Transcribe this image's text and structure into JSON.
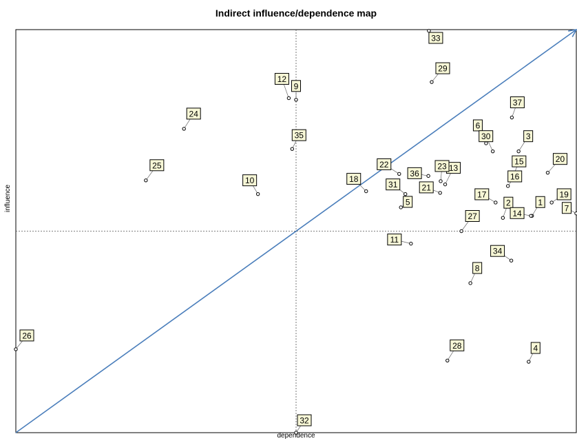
{
  "chart_data": {
    "type": "scatter",
    "title": "Indirect influence/dependence map",
    "xlabel": "dependence",
    "ylabel": "influence",
    "xlim": [
      0,
      1
    ],
    "ylim": [
      0,
      1
    ],
    "crosshair": {
      "x": 0.5,
      "y": 0.5
    },
    "diagonal": true,
    "grid": false,
    "legend": "none",
    "colors": {
      "diagonal": "#4a7ebb",
      "marker": "#000000",
      "label_fill": "#f7f7d6"
    },
    "points": [
      {
        "label": "1",
        "x": 0.921,
        "y": 0.538
      },
      {
        "label": "2",
        "x": 0.869,
        "y": 0.533
      },
      {
        "label": "3",
        "x": 0.897,
        "y": 0.698
      },
      {
        "label": "4",
        "x": 0.915,
        "y": 0.176
      },
      {
        "label": "5",
        "x": 0.687,
        "y": 0.559
      },
      {
        "label": "6",
        "x": 0.839,
        "y": 0.718
      },
      {
        "label": "7",
        "x": 1.0,
        "y": 0.544
      },
      {
        "label": "8",
        "x": 0.811,
        "y": 0.371
      },
      {
        "label": "9",
        "x": 0.5,
        "y": 0.826
      },
      {
        "label": "10",
        "x": 0.432,
        "y": 0.592
      },
      {
        "label": "11",
        "x": 0.705,
        "y": 0.469
      },
      {
        "label": "12",
        "x": 0.487,
        "y": 0.83
      },
      {
        "label": "13",
        "x": 0.766,
        "y": 0.616
      },
      {
        "label": "14",
        "x": 0.919,
        "y": 0.538
      },
      {
        "label": "15",
        "x": 0.888,
        "y": 0.639
      },
      {
        "label": "16",
        "x": 0.878,
        "y": 0.612
      },
      {
        "label": "17",
        "x": 0.856,
        "y": 0.571
      },
      {
        "label": "18",
        "x": 0.625,
        "y": 0.599
      },
      {
        "label": "19",
        "x": 0.956,
        "y": 0.571
      },
      {
        "label": "20",
        "x": 0.949,
        "y": 0.645
      },
      {
        "label": "21",
        "x": 0.757,
        "y": 0.595
      },
      {
        "label": "22",
        "x": 0.684,
        "y": 0.642
      },
      {
        "label": "23",
        "x": 0.758,
        "y": 0.624
      },
      {
        "label": "24",
        "x": 0.3,
        "y": 0.754
      },
      {
        "label": "25",
        "x": 0.232,
        "y": 0.626
      },
      {
        "label": "26",
        "x": 0.0,
        "y": 0.207
      },
      {
        "label": "27",
        "x": 0.795,
        "y": 0.5
      },
      {
        "label": "28",
        "x": 0.77,
        "y": 0.179
      },
      {
        "label": "29",
        "x": 0.742,
        "y": 0.87
      },
      {
        "label": "30",
        "x": 0.851,
        "y": 0.698
      },
      {
        "label": "31",
        "x": 0.695,
        "y": 0.592
      },
      {
        "label": "32",
        "x": 0.5,
        "y": 0.0
      },
      {
        "label": "33",
        "x": 0.737,
        "y": 0.997
      },
      {
        "label": "34",
        "x": 0.884,
        "y": 0.427
      },
      {
        "label": "35",
        "x": 0.493,
        "y": 0.704
      },
      {
        "label": "36",
        "x": 0.736,
        "y": 0.637
      },
      {
        "label": "37",
        "x": 0.885,
        "y": 0.782
      }
    ]
  }
}
